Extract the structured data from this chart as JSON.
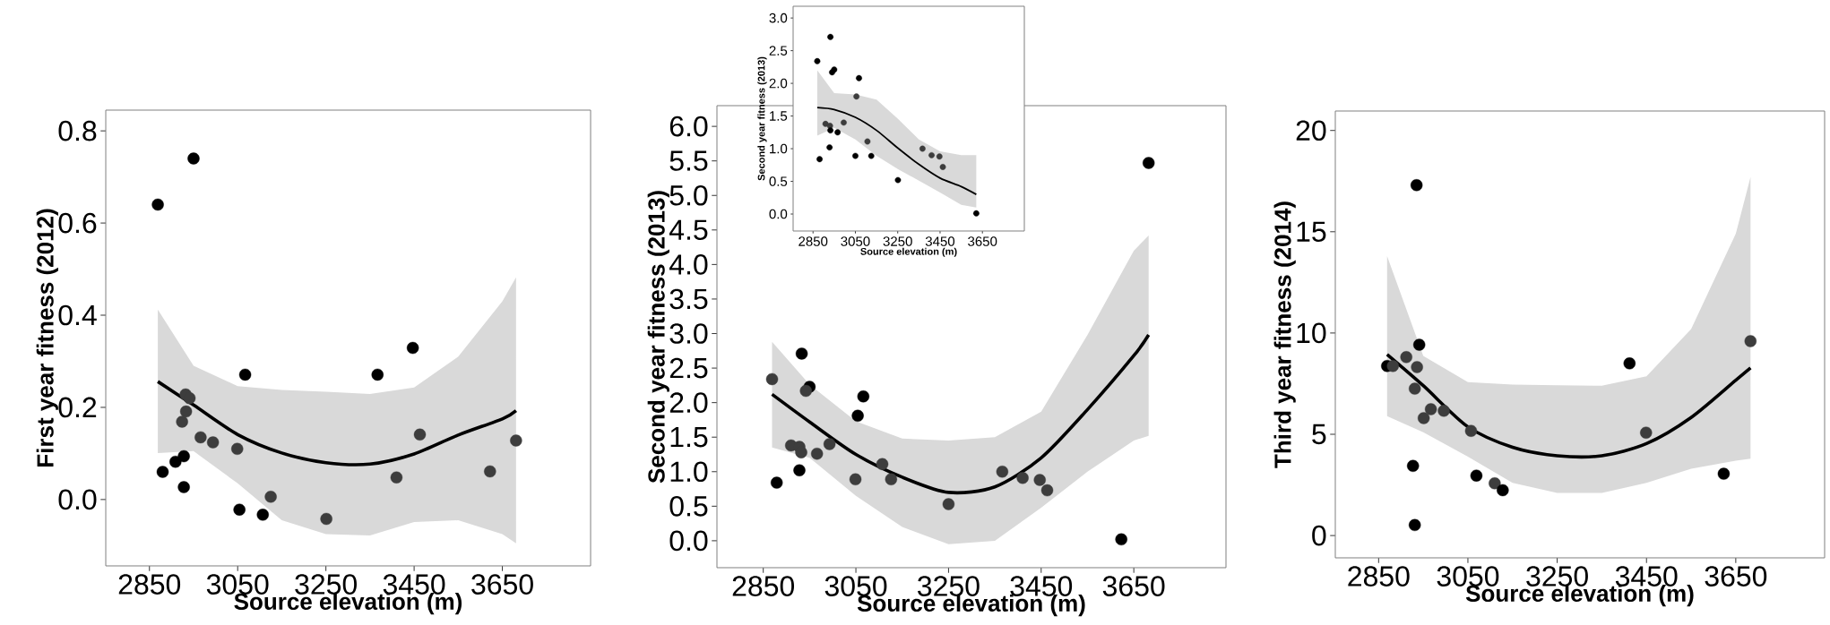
{
  "chart_data": [
    {
      "type": "scatter",
      "xlabel": "Source elevation (m)",
      "ylabel": "First year fitness (2012)",
      "xlim": [
        2751,
        3850
      ],
      "ylim": [
        -0.144,
        0.845
      ],
      "xticks": [
        2850,
        3050,
        3250,
        3450,
        3650
      ],
      "yticks": [
        {
          "value": 0,
          "label": "0.0"
        },
        {
          "value": 0.2,
          "label": "0.2"
        },
        {
          "value": 0.4,
          "label": "0.4"
        },
        {
          "value": 0.6,
          "label": "0.6"
        },
        {
          "value": 0.8,
          "label": "0.8"
        }
      ],
      "series": [
        {
          "type": "line",
          "color": "#000000",
          "marker": "none",
          "x": [
            2869,
            2950,
            3050,
            3150,
            3250,
            3350,
            3450,
            3550,
            3650,
            3681
          ],
          "values": [
            0.256,
            0.205,
            0.141,
            0.101,
            0.08,
            0.077,
            0.099,
            0.14,
            0.175,
            0.193
          ],
          "lower": [
            0.101,
            0.105,
            0.035,
            -0.045,
            -0.075,
            -0.078,
            -0.049,
            -0.045,
            -0.075,
            -0.095
          ],
          "upper": [
            0.412,
            0.29,
            0.246,
            0.238,
            0.234,
            0.229,
            0.243,
            0.31,
            0.43,
            0.482
          ]
        },
        {
          "marker": "circle",
          "x": [
            2869,
            2950,
            2880,
            2909,
            2928,
            2928,
            2932,
            2941,
            2933,
            2924,
            2966,
            2994,
            3049,
            3067,
            3054,
            3107,
            3125,
            3251,
            3367,
            3447,
            3410,
            3463,
            3622,
            3681
          ],
          "values": [
            0.64,
            0.74,
            0.06,
            0.082,
            0.094,
            0.027,
            0.228,
            0.22,
            0.191,
            0.169,
            0.135,
            0.124,
            0.11,
            0.271,
            -0.022,
            -0.033,
            0.006,
            -0.042,
            0.271,
            0.329,
            0.048,
            0.141,
            0.061,
            0.128
          ],
          "colors": [
            "#000000",
            "#000000",
            "#000000",
            "#000000",
            "#000000",
            "#000000",
            "#3d3d3d",
            "#3d3d3d",
            "#3d3d3d",
            "#3d3d3d",
            "#3d3d3d",
            "#3d3d3d",
            "#3d3d3d",
            "#000000",
            "#000000",
            "#000000",
            "#3d3d3d",
            "#3d3d3d",
            "#000000",
            "#000000",
            "#3d3d3d",
            "#3d3d3d",
            "#3d3d3d",
            "#3d3d3d"
          ]
        }
      ]
    },
    {
      "type": "scatter",
      "xlabel": "Source elevation (m)",
      "ylabel": "Second year fitness (2013)",
      "xlim": [
        2750,
        3849
      ],
      "ylim": [
        -0.39,
        6.3
      ],
      "xticks": [
        2850,
        3050,
        3250,
        3450,
        3650
      ],
      "yticks": [
        {
          "value": 0,
          "label": "0.0"
        },
        {
          "value": 0.5,
          "label": "0.5"
        },
        {
          "value": 1,
          "label": "1.0"
        },
        {
          "value": 1.5,
          "label": "1.5"
        },
        {
          "value": 2,
          "label": "2.0"
        },
        {
          "value": 2.5,
          "label": "2.5"
        },
        {
          "value": 3,
          "label": "3.0"
        },
        {
          "value": 3.5,
          "label": "3.5"
        },
        {
          "value": 4,
          "label": "4.0"
        },
        {
          "value": 4.5,
          "label": "4.5"
        },
        {
          "value": 5,
          "label": "5.0"
        },
        {
          "value": 5.5,
          "label": "5.5"
        },
        {
          "value": 6,
          "label": "6.0"
        }
      ],
      "series": [
        {
          "type": "line",
          "color": "#000000",
          "marker": "none",
          "x": [
            2869,
            2950,
            3050,
            3150,
            3250,
            3350,
            3450,
            3550,
            3650,
            3682
          ],
          "values": [
            2.12,
            1.72,
            1.25,
            0.92,
            0.7,
            0.78,
            1.2,
            1.9,
            2.68,
            2.98
          ],
          "lower": [
            1.35,
            1.2,
            0.65,
            0.2,
            -0.05,
            0.0,
            0.48,
            1.0,
            1.45,
            1.52
          ],
          "upper": [
            2.88,
            2.26,
            1.73,
            1.48,
            1.45,
            1.5,
            1.87,
            2.98,
            4.2,
            4.42
          ]
        },
        {
          "marker": "circle",
          "x": [
            2869,
            2879,
            2933,
            2950,
            2942,
            2910,
            2928,
            2932,
            2928,
            2966,
            2993,
            3054,
            3066,
            3049,
            3107,
            3126,
            3250,
            3366,
            3410,
            3447,
            3463,
            3623,
            3682
          ],
          "values": [
            2.34,
            0.84,
            2.71,
            2.23,
            2.17,
            1.38,
            1.36,
            1.28,
            1.02,
            1.26,
            1.4,
            1.81,
            2.09,
            0.89,
            1.11,
            0.89,
            0.53,
            1.0,
            0.91,
            0.88,
            0.73,
            0.02,
            5.47
          ],
          "colors": [
            "#3d3d3d",
            "#000000",
            "#000000",
            "#000000",
            "#3d3d3d",
            "#3d3d3d",
            "#3d3d3d",
            "#3d3d3d",
            "#000000",
            "#3d3d3d",
            "#3d3d3d",
            "#000000",
            "#000000",
            "#3d3d3d",
            "#3d3d3d",
            "#3d3d3d",
            "#3d3d3d",
            "#3d3d3d",
            "#3d3d3d",
            "#3d3d3d",
            "#3d3d3d",
            "#000000",
            "#000000"
          ]
        }
      ]
    },
    {
      "type": "scatter",
      "xlabel": "Source elevation (m)",
      "ylabel": "Second year fitness (2013)",
      "xlim": [
        2756,
        3848
      ],
      "ylim": [
        -0.26,
        3.18
      ],
      "xticks": [
        2850,
        3050,
        3250,
        3450,
        3650
      ],
      "yticks": [
        {
          "value": 0,
          "label": "0.0"
        },
        {
          "value": 0.5,
          "label": "0.5"
        },
        {
          "value": 1,
          "label": "1.0"
        },
        {
          "value": 1.5,
          "label": "1.5"
        },
        {
          "value": 2,
          "label": "2.0"
        },
        {
          "value": 2.5,
          "label": "2.5"
        },
        {
          "value": 3,
          "label": "3.0"
        }
      ],
      "series": [
        {
          "type": "line",
          "color": "#000000",
          "marker": "none",
          "x": [
            2870,
            2950,
            3050,
            3150,
            3250,
            3350,
            3450,
            3550,
            3621
          ],
          "values": [
            1.63,
            1.6,
            1.48,
            1.28,
            1.01,
            0.76,
            0.55,
            0.42,
            0.3
          ],
          "lower": [
            1.2,
            1.32,
            1.14,
            0.89,
            0.69,
            0.51,
            0.33,
            0.14,
            0.1
          ],
          "upper": [
            2.2,
            1.85,
            1.83,
            1.75,
            1.46,
            1.14,
            0.96,
            0.9,
            0.9
          ]
        },
        {
          "marker": "circle",
          "x": [
            2870,
            2881,
            2932,
            2950,
            2940,
            2909,
            2930,
            2932,
            2928,
            2966,
            2995,
            3055,
            3067,
            3050,
            3107,
            3125,
            3251,
            3367,
            3410,
            3447,
            3463,
            3621
          ],
          "values": [
            2.34,
            0.84,
            2.71,
            2.21,
            2.17,
            1.38,
            1.35,
            1.28,
            1.02,
            1.25,
            1.4,
            1.8,
            2.08,
            0.89,
            1.11,
            0.89,
            0.52,
            1.0,
            0.9,
            0.88,
            0.72,
            0.01
          ],
          "colors": [
            "#000000",
            "#000000",
            "#000000",
            "#000000",
            "#000000",
            "#3d3d3d",
            "#3d3d3d",
            "#000000",
            "#000000",
            "#000000",
            "#3d3d3d",
            "#3d3d3d",
            "#000000",
            "#000000",
            "#3d3d3d",
            "#000000",
            "#000000",
            "#3d3d3d",
            "#3d3d3d",
            "#3d3d3d",
            "#3d3d3d",
            "#000000"
          ]
        }
      ]
    },
    {
      "type": "scatter",
      "xlabel": "Source elevation (m)",
      "ylabel": "Third year fitness (2014)",
      "xlim": [
        2753,
        3849
      ],
      "ylim": [
        -1.1,
        20.96
      ],
      "xticks": [
        2850,
        3050,
        3250,
        3450,
        3650
      ],
      "yticks": [
        0,
        5,
        10,
        15,
        20
      ],
      "series": [
        {
          "type": "line",
          "color": "#000000",
          "marker": "none",
          "x": [
            2869,
            2950,
            3050,
            3150,
            3250,
            3350,
            3450,
            3550,
            3650,
            3683
          ],
          "values": [
            8.94,
            7.4,
            5.37,
            4.36,
            3.94,
            3.94,
            4.54,
            5.83,
            7.67,
            8.28
          ],
          "lower": [
            5.9,
            5.1,
            3.9,
            2.6,
            2.1,
            2.1,
            2.6,
            3.3,
            3.7,
            3.8
          ],
          "upper": [
            13.8,
            8.87,
            7.58,
            7.45,
            7.42,
            7.4,
            7.86,
            10.2,
            14.9,
            17.7
          ]
        },
        {
          "marker": "circle",
          "x": [
            2869,
            2882,
            2912,
            2935,
            2941,
            2936,
            2931,
            2951,
            2967,
            2996,
            2927,
            2931,
            3057,
            3069,
            3110,
            3128,
            3412,
            3449,
            3623,
            3683
          ],
          "values": [
            8.37,
            8.37,
            8.81,
            17.3,
            9.42,
            8.32,
            7.25,
            5.8,
            6.24,
            6.16,
            3.44,
            0.52,
            5.17,
            2.96,
            2.58,
            2.24,
            8.5,
            5.08,
            3.05,
            9.6
          ],
          "colors": [
            "#000000",
            "#3d3d3d",
            "#3d3d3d",
            "#000000",
            "#000000",
            "#3d3d3d",
            "#3d3d3d",
            "#3d3d3d",
            "#3d3d3d",
            "#3d3d3d",
            "#000000",
            "#000000",
            "#3d3d3d",
            "#000000",
            "#3d3d3d",
            "#000000",
            "#000000",
            "#3d3d3d",
            "#000000",
            "#3d3d3d"
          ]
        }
      ]
    }
  ]
}
